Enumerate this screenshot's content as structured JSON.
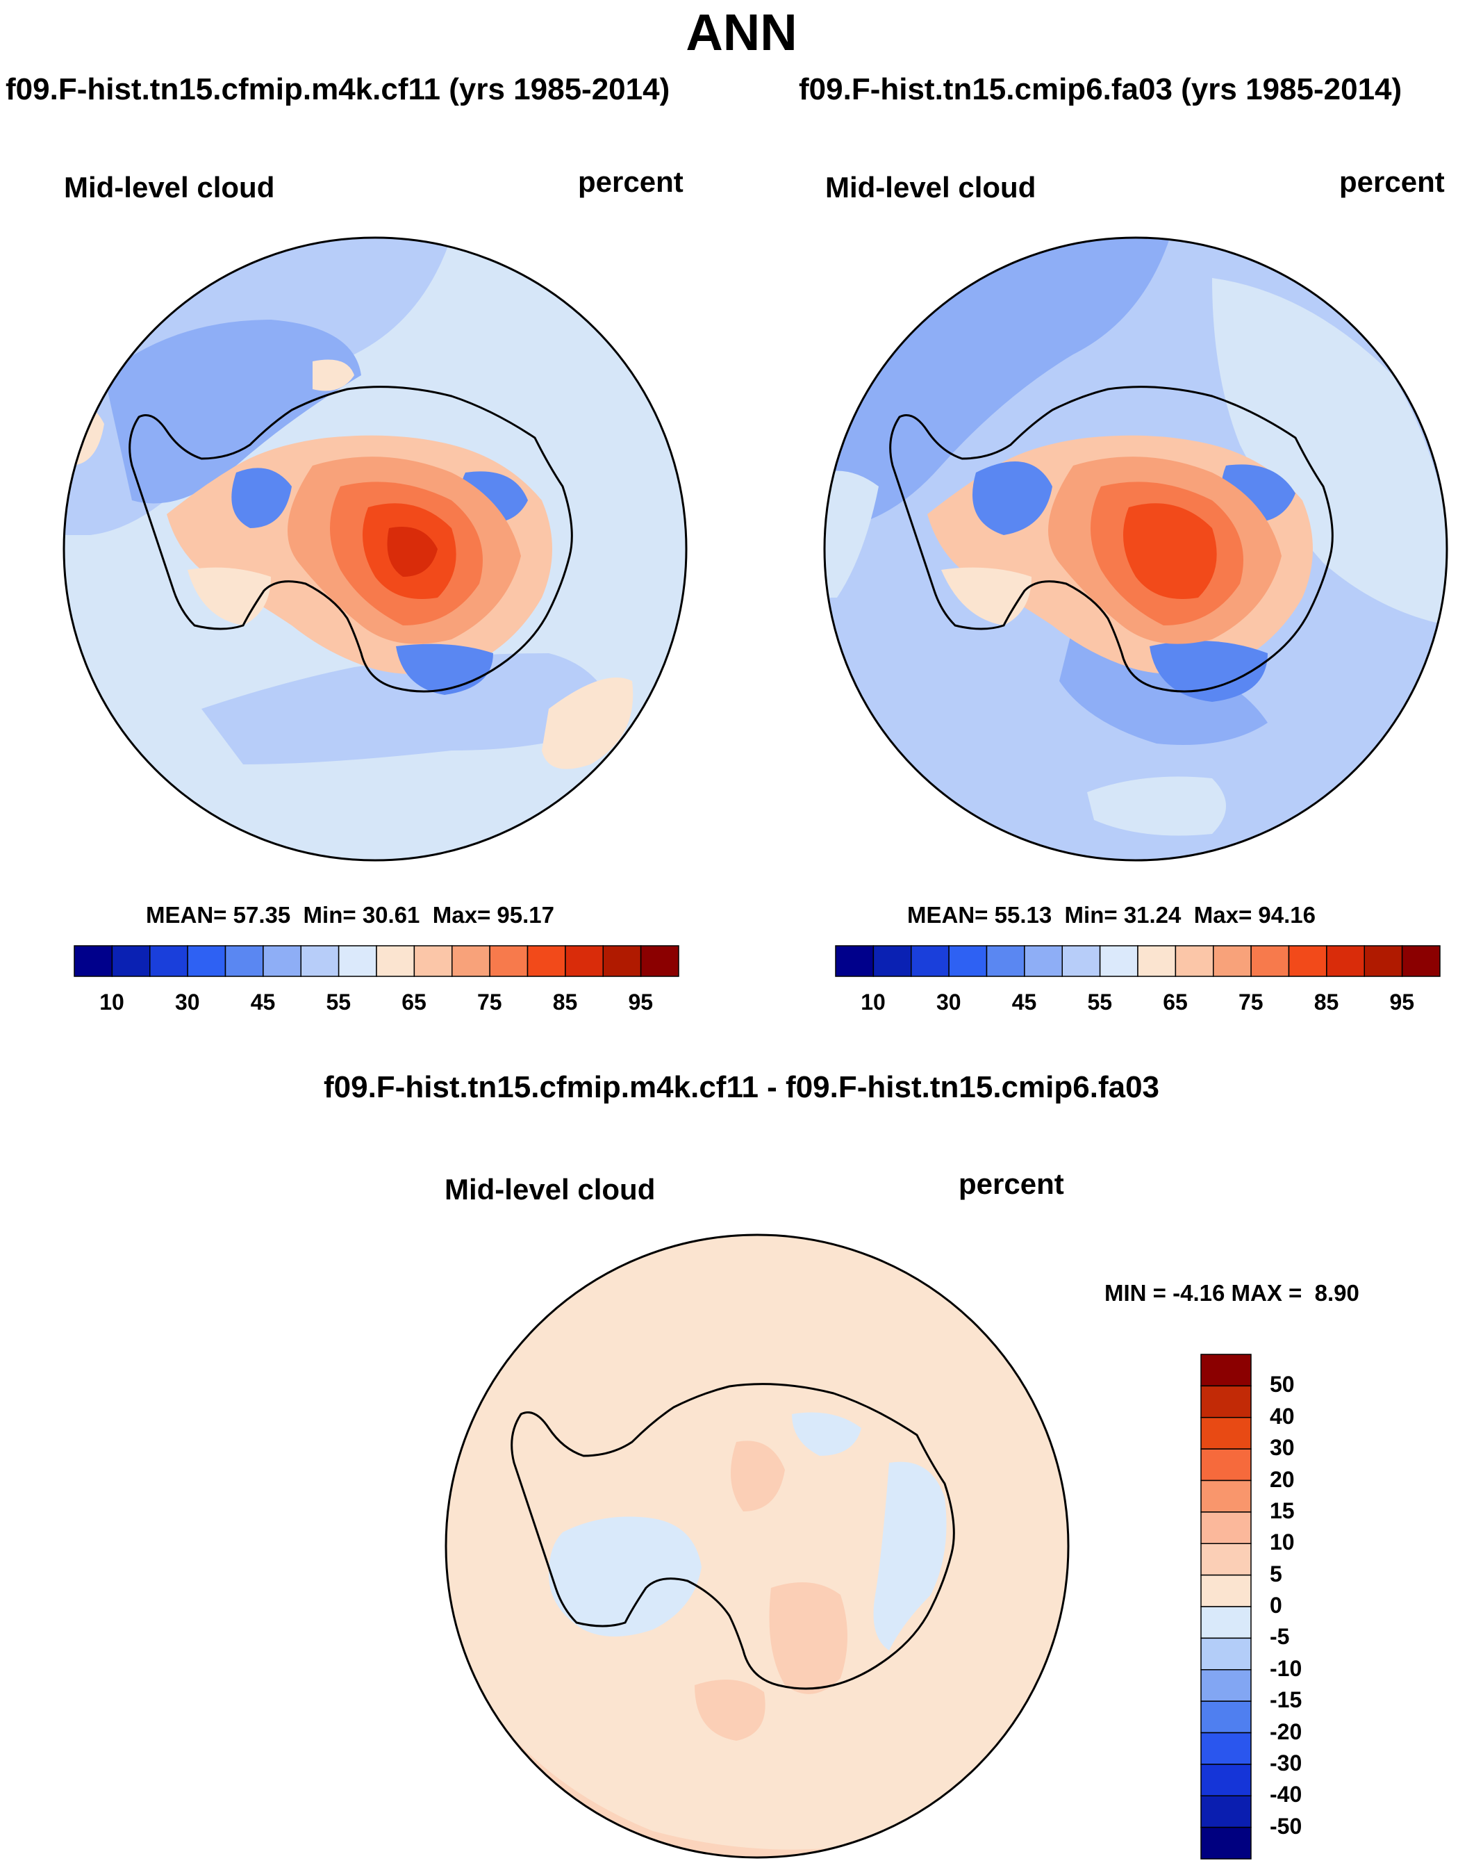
{
  "season": "ANN",
  "colors": {
    "ocean_main": "#d6e6f8",
    "ocean_diff": "#fbe4d0",
    "coast": "#000000",
    "seq_palette": [
      "#00008b",
      "#0a21b3",
      "#1a3fdb",
      "#2e61f3",
      "#5a87f2",
      "#8eaef6",
      "#b7cdf9",
      "#dbe9fb",
      "#fbe4d0",
      "#fbc6a8",
      "#f8a27a",
      "#f77a4c",
      "#f24a1a",
      "#d92c0a",
      "#b01a00",
      "#8b0000"
    ],
    "diff_palette": [
      "#000080",
      "#0a1eb0",
      "#1535d8",
      "#2a56ee",
      "#4f7ff0",
      "#82a6f3",
      "#b3cdf8",
      "#d9e9fa",
      "#fbe4d0",
      "#fbcfb6",
      "#fbb89b",
      "#f9966c",
      "#f66a3c",
      "#e84a14",
      "#c22a06",
      "#8b0000"
    ]
  },
  "panels": [
    {
      "id": "left",
      "case_title": "f09.F-hist.tn15.cfmip.m4k.cf11 (yrs 1985-2014)",
      "var_label": "Mid-level cloud",
      "units": "percent",
      "stats": {
        "mean_label": "MEAN=",
        "mean": "57.35",
        "min_label": "Min=",
        "min": "30.61",
        "max_label": "Max=",
        "max": "95.17"
      },
      "colorbar_ticks": [
        "10",
        "30",
        "45",
        "55",
        "65",
        "75",
        "85",
        "95"
      ]
    },
    {
      "id": "right",
      "case_title": "f09.F-hist.tn15.cmip6.fa03 (yrs 1985-2014)",
      "var_label": "Mid-level cloud",
      "units": "percent",
      "stats": {
        "mean_label": "MEAN=",
        "mean": "55.13",
        "min_label": "Min=",
        "min": "31.24",
        "max_label": "Max=",
        "max": "94.16"
      },
      "colorbar_ticks": [
        "10",
        "30",
        "45",
        "55",
        "65",
        "75",
        "85",
        "95"
      ]
    }
  ],
  "diff_panel": {
    "title": "f09.F-hist.tn15.cfmip.m4k.cf11 - f09.F-hist.tn15.cmip6.fa03",
    "var_label": "Mid-level cloud",
    "units": "percent",
    "stats": {
      "min_label": "MIN =",
      "min": "-4.16",
      "max_label": "MAX =",
      "max": "8.90"
    },
    "colorbar_ticks": [
      "50",
      "40",
      "30",
      "20",
      "15",
      "10",
      "5",
      "0",
      "-5",
      "-10",
      "-15",
      "-20",
      "-30",
      "-40",
      "-50"
    ]
  }
}
